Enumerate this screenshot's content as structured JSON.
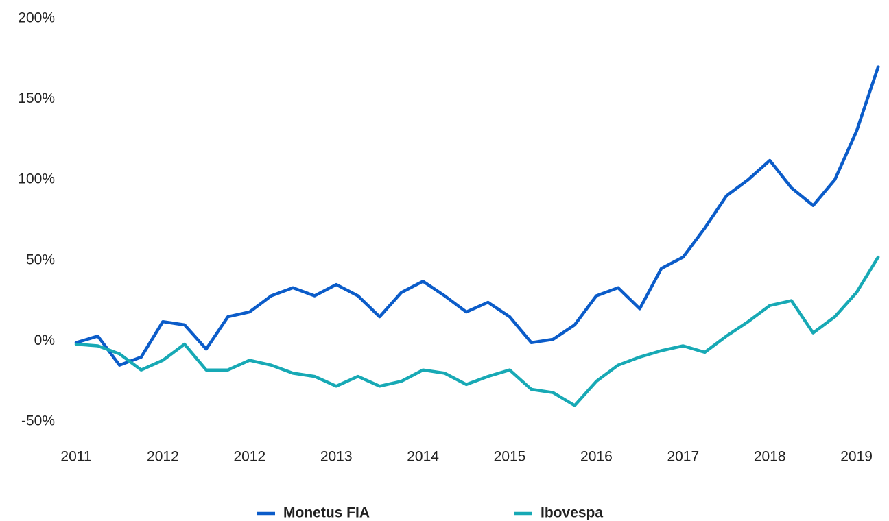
{
  "chart_data": {
    "type": "line",
    "categories": [
      "2011",
      null,
      null,
      null,
      "2012",
      null,
      null,
      null,
      "2012",
      null,
      null,
      null,
      "2013",
      null,
      null,
      null,
      "2014",
      null,
      null,
      null,
      "2015",
      null,
      null,
      null,
      "2016",
      null,
      null,
      null,
      "2017",
      null,
      null,
      null,
      "2018",
      null,
      null,
      null,
      "2019",
      null
    ],
    "series": [
      {
        "name": "Monetus FIA",
        "color": "#0b5cc9",
        "values": [
          -1,
          3,
          -15,
          -10,
          12,
          10,
          -5,
          15,
          18,
          28,
          33,
          28,
          35,
          28,
          15,
          30,
          37,
          28,
          18,
          24,
          15,
          -1,
          1,
          10,
          28,
          33,
          20,
          45,
          52,
          70,
          90,
          100,
          112,
          95,
          84,
          100,
          130,
          170
        ]
      },
      {
        "name": "Ibovespa",
        "color": "#17a9b5",
        "values": [
          -2,
          -3,
          -8,
          -18,
          -12,
          -2,
          -18,
          -18,
          -12,
          -15,
          -20,
          -22,
          -28,
          -22,
          -28,
          -25,
          -18,
          -20,
          -27,
          -22,
          -18,
          -30,
          -32,
          -40,
          -25,
          -15,
          -10,
          -6,
          -3,
          -7,
          3,
          12,
          22,
          25,
          5,
          15,
          30,
          52
        ]
      }
    ],
    "ylim": [
      -50,
      200
    ],
    "yticks": [
      {
        "value": -50,
        "label": "-50%"
      },
      {
        "value": 0,
        "label": "0%"
      },
      {
        "value": 50,
        "label": "50%"
      },
      {
        "value": 100,
        "label": "100%"
      },
      {
        "value": 150,
        "label": "150%"
      },
      {
        "value": 200,
        "label": "200%"
      }
    ],
    "grid": false,
    "legend": "bottom"
  }
}
